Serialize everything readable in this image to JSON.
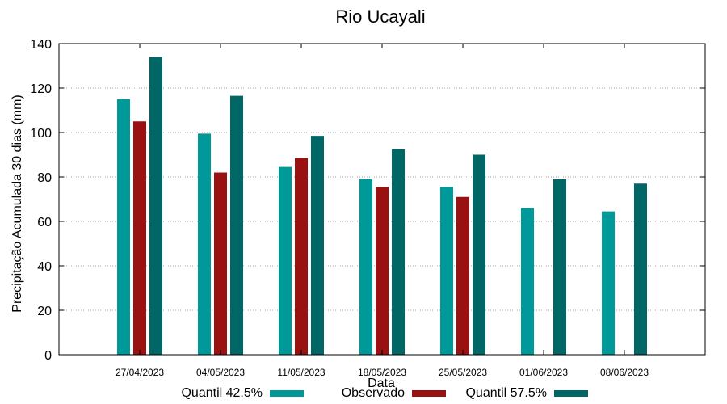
{
  "chart_data": {
    "type": "bar",
    "title": "Rio Ucayali",
    "xlabel": "Data",
    "ylabel": "Precipitação Acumulada 30 dias (mm)",
    "ylim": [
      0,
      140
    ],
    "yticks": [
      0,
      20,
      40,
      60,
      80,
      100,
      120,
      140
    ],
    "grid": true,
    "legend_position": "bottom",
    "categories": [
      "27/04/2023",
      "04/05/2023",
      "11/05/2023",
      "18/05/2023",
      "25/05/2023",
      "01/06/2023",
      "08/06/2023"
    ],
    "series": [
      {
        "name": "Quantil 42.5%",
        "color": "#009999",
        "values": [
          115,
          99.5,
          84.5,
          79,
          75.5,
          66,
          64.5
        ]
      },
      {
        "name": "Observado",
        "color": "#991111",
        "values": [
          105,
          82,
          88.5,
          75.5,
          71,
          null,
          null
        ]
      },
      {
        "name": "Quantil 57.5%",
        "color": "#006666",
        "values": [
          134,
          116.5,
          98.5,
          92.5,
          90,
          79,
          77
        ]
      }
    ]
  }
}
